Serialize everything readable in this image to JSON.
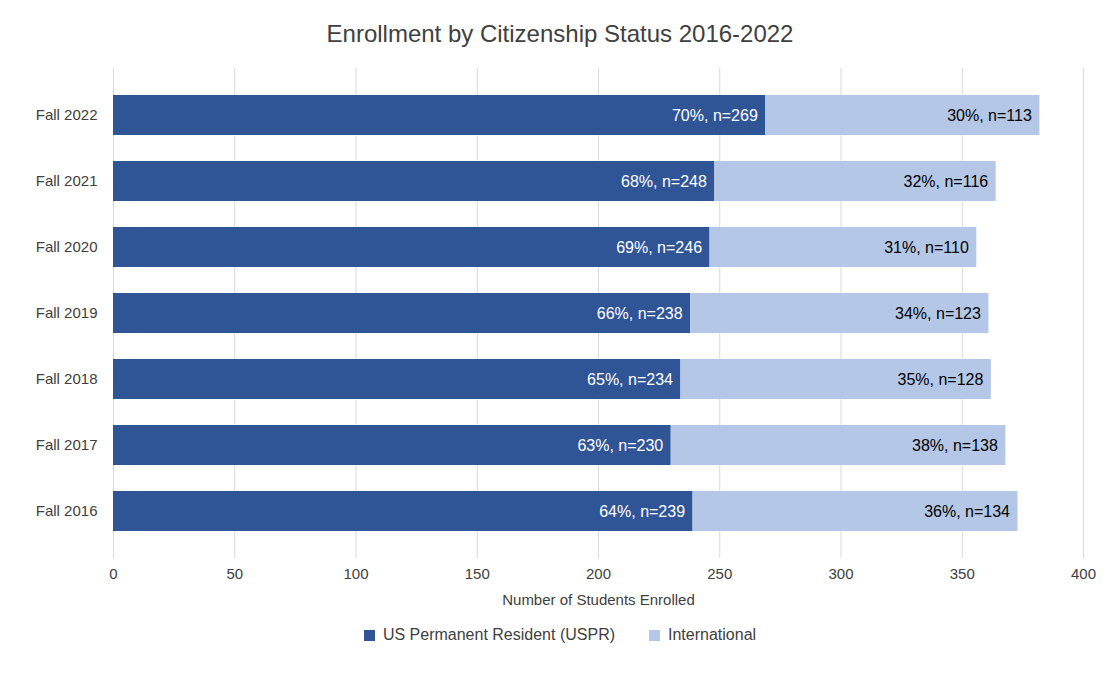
{
  "chart_data": {
    "type": "bar",
    "orientation": "horizontal",
    "stacked": true,
    "data_labels": true,
    "grid": true,
    "legend": "bottom",
    "title": "Enrollment by Citizenship Status 2016-2022",
    "x_label": "Number of Students Enrolled",
    "categories": [
      "Fall 2022",
      "Fall 2021",
      "Fall 2020",
      "Fall 2019",
      "Fall 2018",
      "Fall 2017",
      "Fall 2016"
    ],
    "series": [
      {
        "name": "US Permanent Resident (USPR)",
        "color": "#2f5597",
        "values": [
          269,
          248,
          246,
          238,
          234,
          230,
          239
        ],
        "value_labels": [
          "70%, n=269",
          "68%, n=248",
          "69%, n=246",
          "66%, n=238",
          "65%, n=234",
          "63%, n=230",
          "64%, n=239"
        ]
      },
      {
        "name": "International",
        "color": "#b4c7e7",
        "values": [
          113,
          116,
          110,
          123,
          128,
          138,
          134
        ],
        "value_labels": [
          "30%, n=113",
          "32%, n=116",
          "31%, n=110",
          "34%, n=123",
          "35%, n=128",
          "38%, n=138",
          "36%, n=134"
        ]
      }
    ],
    "xlim": [
      0,
      400
    ],
    "xticks": [
      0,
      50,
      100,
      150,
      200,
      250,
      300,
      350,
      400
    ]
  }
}
